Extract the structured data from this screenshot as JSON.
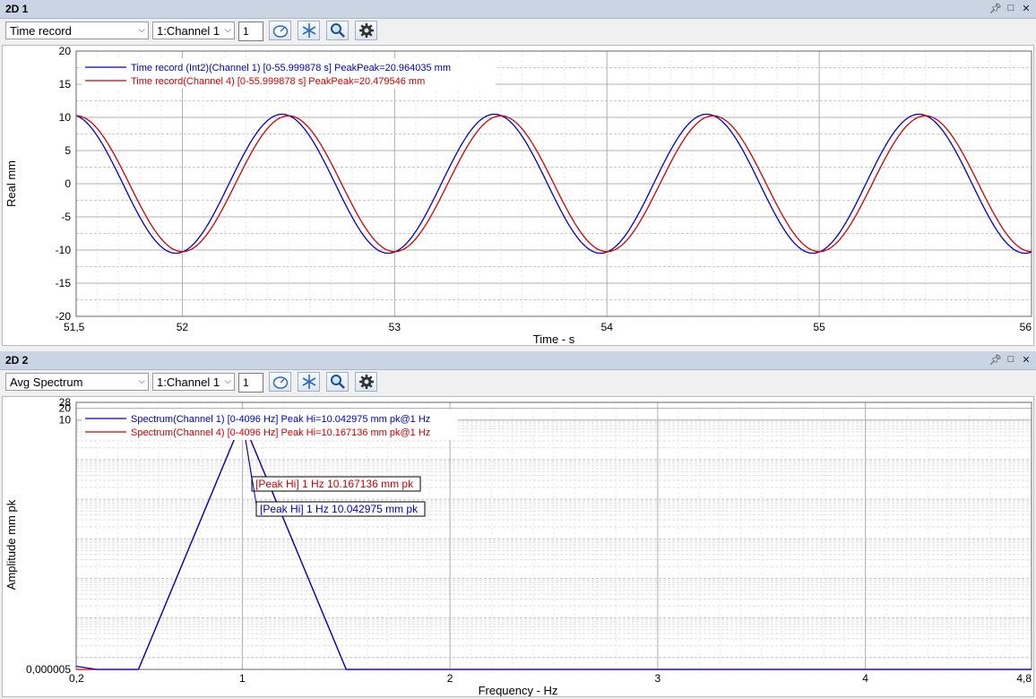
{
  "panel1": {
    "title": "2D 1",
    "combo": "Time record",
    "channel": "1:Channel 1",
    "number": "1",
    "icons": [
      "pin-icon",
      "maximize-icon",
      "close-icon"
    ],
    "toolbar_icons": [
      "gauge-icon",
      "snowflake-icon",
      "magnifier-icon",
      "gear-icon"
    ]
  },
  "panel2": {
    "title": "2D 2",
    "combo": "Avg Spectrum",
    "channel": "1:Channel 1",
    "number": "1",
    "icons": [
      "pin-icon",
      "maximize-icon",
      "close-icon"
    ],
    "toolbar_icons": [
      "gauge-icon",
      "snowflake-icon",
      "magnifier-icon",
      "gear-icon"
    ]
  },
  "chart_data": [
    {
      "type": "line",
      "xlabel": "Time - s",
      "ylabel": "Real mm",
      "xlim": [
        51.5,
        56
      ],
      "ylim": [
        -20,
        20
      ],
      "x_ticks": [
        "51,5",
        "52",
        "53",
        "54",
        "55",
        "56"
      ],
      "x_tick_values": [
        51.5,
        52,
        53,
        54,
        55,
        56
      ],
      "y_ticks": [
        20,
        15,
        10,
        5,
        0,
        -5,
        -10,
        -15,
        -20
      ],
      "grid": true,
      "legend_position": "top-left",
      "series": [
        {
          "name": "Time record (Int2)(Channel 1) [0-55.999878 s] PeakPeak=20.964035 mm",
          "color": "#0000c8",
          "amplitude": 10.48,
          "frequency_hz": 1,
          "peak_time_s": 52.47,
          "x": [
            51.5,
            51.75,
            52.0,
            52.25,
            52.5,
            52.75,
            53.0,
            53.25,
            53.5,
            53.75,
            54.0,
            54.25,
            54.5,
            54.75,
            55.0,
            55.25,
            55.5,
            55.75,
            56.0
          ],
          "y": [
            9.4,
            -1.9,
            -10.3,
            1.9,
            9.4,
            -1.9,
            -10.3,
            1.9,
            9.4,
            -1.9,
            -10.3,
            1.9,
            9.4,
            -1.9,
            -10.3,
            1.9,
            9.4,
            -1.9,
            -10.3
          ]
        },
        {
          "name": "Time record(Channel 4) [0-55.999878 s] PeakPeak=20.479546 mm",
          "color": "#d00000",
          "amplitude": 10.24,
          "frequency_hz": 1,
          "peak_time_s": 52.5,
          "x": [
            51.5,
            51.75,
            52.0,
            52.25,
            52.5,
            52.75,
            53.0,
            53.25,
            53.5,
            53.75,
            54.0,
            54.25,
            54.5,
            54.75,
            55.0,
            55.25,
            55.5,
            55.75,
            56.0
          ],
          "y": [
            10.2,
            0,
            -10.2,
            0,
            10.2,
            0,
            -10.2,
            0,
            10.2,
            0,
            -10.2,
            0,
            10.2,
            0,
            -10.2,
            0,
            10.2,
            0,
            -10.2
          ]
        }
      ]
    },
    {
      "type": "line",
      "xlabel": "Frequency - Hz",
      "ylabel": "Amplitude mm pk",
      "xlim": [
        0.2,
        4.8
      ],
      "y_scale": "log",
      "ylim": [
        5e-06,
        28
      ],
      "x_ticks": [
        "0,2",
        "1",
        "2",
        "3",
        "4",
        "4,8"
      ],
      "x_tick_values": [
        0.2,
        1,
        2,
        3,
        4,
        4.8
      ],
      "y_ticks": [
        "28",
        "20",
        "10",
        "0,000005"
      ],
      "y_tick_values": [
        28,
        20,
        10,
        5e-06
      ],
      "grid": true,
      "legend_position": "top-left",
      "series": [
        {
          "name": "Spectrum(Channel 1) [0-4096 Hz] Peak Hi=10.042975 mm pk@1 Hz",
          "color": "#0000c8",
          "x": [
            0.2,
            0.3,
            0.5,
            1.0,
            1.5,
            2.0,
            3.0,
            4.0,
            4.8
          ],
          "y": [
            6e-06,
            5e-06,
            5e-06,
            10.042975,
            5e-06,
            5e-06,
            5e-06,
            5e-06,
            5e-06
          ]
        },
        {
          "name": "Spectrum(Channel 4) [0-4096 Hz] Peak Hi=10.167136 mm pk@1 Hz",
          "color": "#d00000",
          "x": [
            0.2,
            0.5,
            1.0,
            1.5,
            2.0,
            3.0,
            4.0,
            4.8
          ],
          "y": [
            5e-06,
            5e-06,
            10.167136,
            5e-06,
            5e-06,
            5e-06,
            5e-06,
            5e-06
          ]
        }
      ],
      "annotations": [
        {
          "text": "[Peak Hi] 1 Hz 10.167136 mm pk",
          "color": "#d00000",
          "x": 1,
          "y": 10.167136
        },
        {
          "text": "[Peak Hi] 1 Hz 10.042975 mm pk",
          "color": "#0000c8",
          "x": 1,
          "y": 10.042975
        }
      ]
    }
  ]
}
